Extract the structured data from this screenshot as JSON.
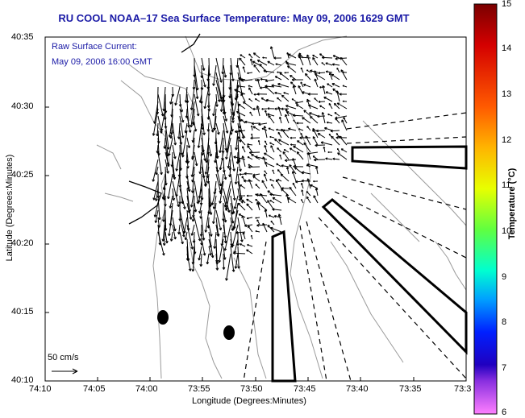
{
  "header": {
    "title": "RU COOL  NOAA–17  Sea Surface Temperature:  May 09, 2006 1629 GMT"
  },
  "legend": {
    "line1": "Raw Surface Current:",
    "line2": "May 09, 2006 16:00 GMT",
    "scale_label": "50 cm/s"
  },
  "axes": {
    "xlabel": "Longitude (Degrees:Minutes)",
    "ylabel": "Latitude (Degrees:Minutes)",
    "xticks": [
      "74:10",
      "74:05",
      "74:00",
      "73:55",
      "73:50",
      "73:45",
      "73:40",
      "73:35",
      "73:3"
    ],
    "yticks": [
      "40:35",
      "40:30",
      "40:25",
      "40:20",
      "40:15",
      "40:10"
    ]
  },
  "colorbar": {
    "label": "Temperature (°C)",
    "ticks": [
      "15",
      "14",
      "13",
      "12",
      "11",
      "10",
      "9",
      "8",
      "7",
      "6"
    ],
    "min": 6,
    "max": 15
  },
  "markers": [
    {
      "lon": "74:01.2",
      "lat": "40:14.5"
    },
    {
      "lon": "73:57.1",
      "lat": "40:13.5"
    }
  ],
  "colors": {
    "title": "#1a1aa6",
    "frame": "#000000",
    "coast": "#9a9a9a"
  }
}
